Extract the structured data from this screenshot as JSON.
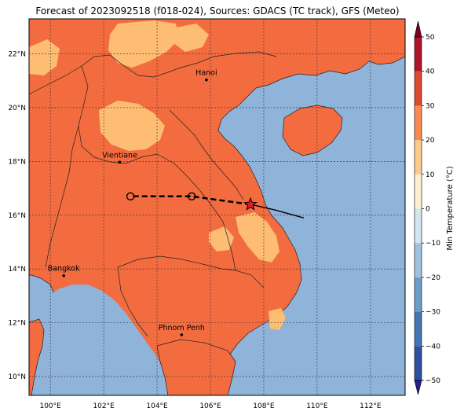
{
  "title": "Forecast of 2023092518 (f018-024), Sources: GDACS (TC track), GFS (Meteo)",
  "map": {
    "lon_range": [
      99.2,
      113.3
    ],
    "lat_range": [
      9.3,
      23.3
    ],
    "lon_ticks": [
      {
        "value": 100,
        "label": "100°E"
      },
      {
        "value": 102,
        "label": "102°E"
      },
      {
        "value": 104,
        "label": "104°E"
      },
      {
        "value": 106,
        "label": "106°E"
      },
      {
        "value": 108,
        "label": "108°E"
      },
      {
        "value": 110,
        "label": "110°E"
      },
      {
        "value": 112,
        "label": "112°E"
      }
    ],
    "lat_ticks": [
      {
        "value": 10,
        "label": "10°N"
      },
      {
        "value": 12,
        "label": "12°N"
      },
      {
        "value": 14,
        "label": "14°N"
      },
      {
        "value": 16,
        "label": "16°N"
      },
      {
        "value": 18,
        "label": "18°N"
      },
      {
        "value": 20,
        "label": "20°N"
      },
      {
        "value": 22,
        "label": "22°N"
      }
    ],
    "gridlines": true,
    "cities": [
      {
        "name": "Hanoi",
        "lon": 105.85,
        "lat": 21.03
      },
      {
        "name": "Vientiane",
        "lon": 102.6,
        "lat": 17.97
      },
      {
        "name": "Bangkok",
        "lon": 100.5,
        "lat": 13.75
      },
      {
        "name": "Phnom Penh",
        "lon": 104.92,
        "lat": 11.55
      }
    ],
    "track_observed": [
      {
        "lon": 109.5,
        "lat": 15.9
      },
      {
        "lon": 108.4,
        "lat": 16.2
      },
      {
        "lon": 107.5,
        "lat": 16.4
      }
    ],
    "track_forecast": [
      {
        "lon": 107.5,
        "lat": 16.4
      },
      {
        "lon": 105.3,
        "lat": 16.7
      },
      {
        "lon": 103.0,
        "lat": 16.7
      }
    ],
    "forecast_points": [
      {
        "lon": 105.3,
        "lat": 16.7
      },
      {
        "lon": 103.0,
        "lat": 16.7
      }
    ],
    "current_position": {
      "lon": 107.5,
      "lat": 16.4
    }
  },
  "colorbar": {
    "label": "Min Temperature (°C)",
    "ticks": [
      {
        "value": 50,
        "label": "50"
      },
      {
        "value": 40,
        "label": "40"
      },
      {
        "value": 30,
        "label": "30"
      },
      {
        "value": 20,
        "label": "20"
      },
      {
        "value": 10,
        "label": "10"
      },
      {
        "value": 0,
        "label": "0"
      },
      {
        "value": -10,
        "label": "−10"
      },
      {
        "value": -20,
        "label": "−20"
      },
      {
        "value": -30,
        "label": "−30"
      },
      {
        "value": -40,
        "label": "−40"
      },
      {
        "value": -50,
        "label": "−50"
      }
    ],
    "colors": [
      "#23238c",
      "#2f50a0",
      "#4275b2",
      "#6c9cc8",
      "#9ec3de",
      "#d2e6f0",
      "#fdf0d2",
      "#fdca8a",
      "#f88c50",
      "#dc4a30",
      "#b01428",
      "#7c0020"
    ],
    "ocean_color": "#8fb3d9",
    "land_warm_color": "#f36c3f",
    "land_mild_color": "#fdbd72"
  }
}
